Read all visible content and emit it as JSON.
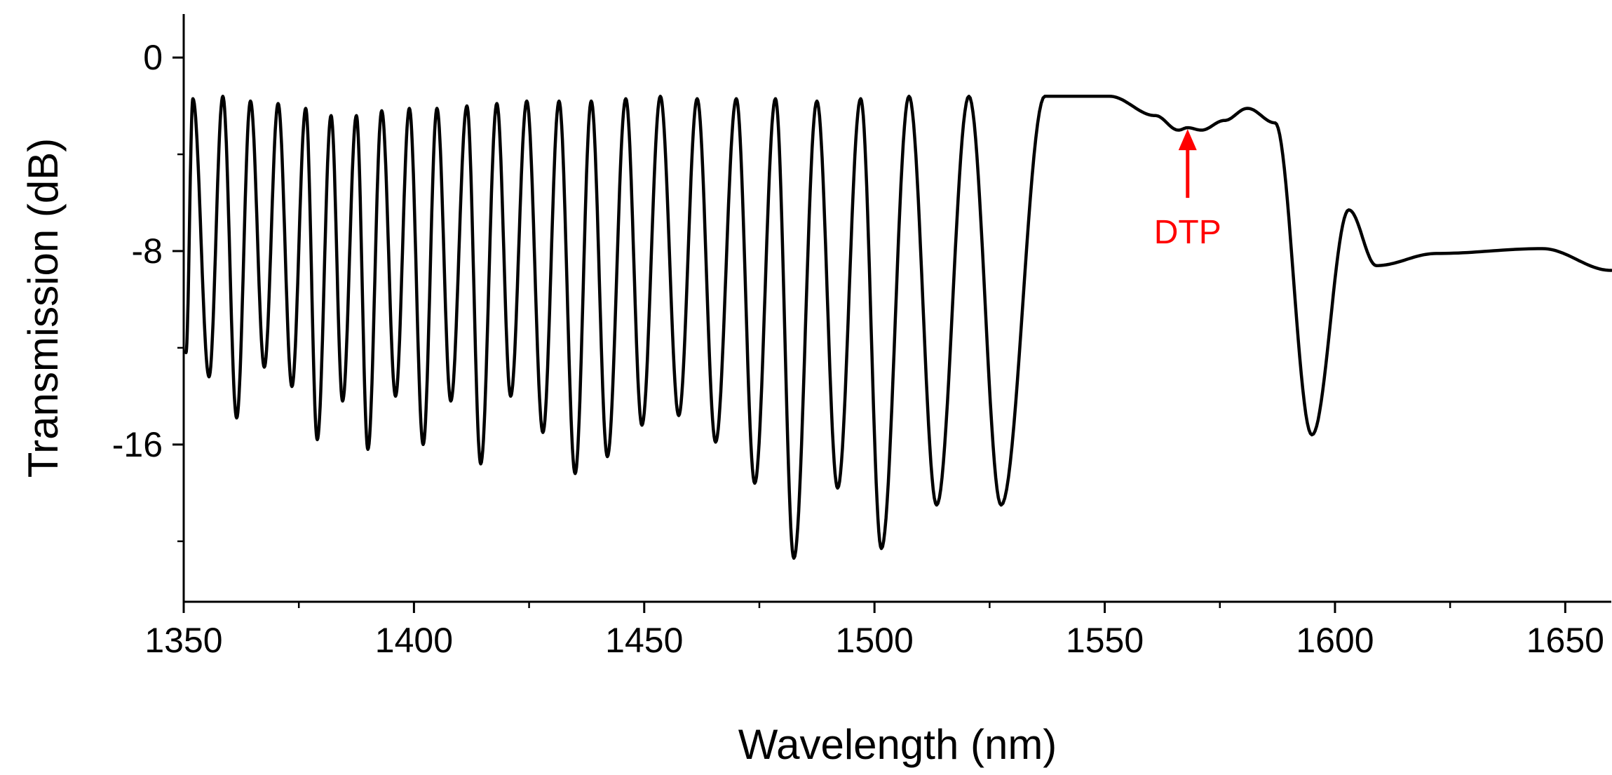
{
  "chart_data": {
    "type": "line",
    "xlabel": "Wavelength (nm)",
    "ylabel": "Transmission (dB)",
    "xlim": [
      1350,
      1660
    ],
    "ylim": [
      -22.5,
      1.8
    ],
    "x_major_ticks": [
      1350,
      1400,
      1450,
      1500,
      1550,
      1600,
      1650
    ],
    "x_tick_labels": [
      "1350",
      "1400",
      "1450",
      "1500",
      "1550",
      "1600",
      "1650"
    ],
    "x_minor_ticks": [
      1375,
      1425,
      1475,
      1525,
      1575,
      1625
    ],
    "y_major_ticks": [
      0,
      -8,
      -16
    ],
    "y_tick_labels": [
      "0",
      "-8",
      "-16"
    ],
    "y_minor_ticks": [
      -4,
      -12,
      -20
    ],
    "grid": false,
    "line_color": "#000000",
    "series": [
      {
        "name": "Transmission",
        "peaks": [
          {
            "x": 1352,
            "y": -1.7
          },
          {
            "x": 1358.5,
            "y": -1.6
          },
          {
            "x": 1364.5,
            "y": -1.8
          },
          {
            "x": 1370.5,
            "y": -1.9
          },
          {
            "x": 1376.5,
            "y": -2.1
          },
          {
            "x": 1382,
            "y": -2.4
          },
          {
            "x": 1387.5,
            "y": -2.4
          },
          {
            "x": 1393,
            "y": -2.2
          },
          {
            "x": 1399,
            "y": -2.1
          },
          {
            "x": 1405,
            "y": -2.1
          },
          {
            "x": 1411.5,
            "y": -2.0
          },
          {
            "x": 1418,
            "y": -1.9
          },
          {
            "x": 1424.5,
            "y": -1.8
          },
          {
            "x": 1431.5,
            "y": -1.8
          },
          {
            "x": 1438.5,
            "y": -1.8
          },
          {
            "x": 1446,
            "y": -1.7
          },
          {
            "x": 1453.5,
            "y": -1.6
          },
          {
            "x": 1461.5,
            "y": -1.7
          },
          {
            "x": 1470,
            "y": -1.7
          },
          {
            "x": 1478.5,
            "y": -1.7
          },
          {
            "x": 1487.5,
            "y": -1.8
          },
          {
            "x": 1497,
            "y": -1.7
          },
          {
            "x": 1507.5,
            "y": -1.6
          },
          {
            "x": 1520.5,
            "y": -1.6
          },
          {
            "x": 1537,
            "y": -1.6
          },
          {
            "x": 1551,
            "y": -1.6
          },
          {
            "x": 1561,
            "y": -2.4
          },
          {
            "x": 1566,
            "y": -3.0
          },
          {
            "x": 1568,
            "y": -2.9
          },
          {
            "x": 1571,
            "y": -3.0
          },
          {
            "x": 1576,
            "y": -2.6
          },
          {
            "x": 1581,
            "y": -2.1
          },
          {
            "x": 1587,
            "y": -2.7
          },
          {
            "x": 1603,
            "y": -6.3
          },
          {
            "x": 1609,
            "y": -8.6
          },
          {
            "x": 1622,
            "y": -8.1
          },
          {
            "x": 1645,
            "y": -7.9
          },
          {
            "x": 1660,
            "y": -8.8
          }
        ],
        "dips": [
          {
            "x": 1350.5,
            "y": -12.2
          },
          {
            "x": 1355.5,
            "y": -13.2
          },
          {
            "x": 1361.5,
            "y": -14.9
          },
          {
            "x": 1367.5,
            "y": -12.8
          },
          {
            "x": 1373.5,
            "y": -13.6
          },
          {
            "x": 1379,
            "y": -15.8
          },
          {
            "x": 1384.5,
            "y": -14.2
          },
          {
            "x": 1390,
            "y": -16.2
          },
          {
            "x": 1396,
            "y": -14.0
          },
          {
            "x": 1402,
            "y": -16.0
          },
          {
            "x": 1408,
            "y": -14.2
          },
          {
            "x": 1414.5,
            "y": -16.8
          },
          {
            "x": 1421,
            "y": -14.0
          },
          {
            "x": 1428,
            "y": -15.5
          },
          {
            "x": 1435,
            "y": -17.2
          },
          {
            "x": 1442,
            "y": -16.5
          },
          {
            "x": 1449.5,
            "y": -15.2
          },
          {
            "x": 1457.5,
            "y": -14.8
          },
          {
            "x": 1465.5,
            "y": -15.9
          },
          {
            "x": 1474,
            "y": -17.6
          },
          {
            "x": 1482.5,
            "y": -20.7
          },
          {
            "x": 1492,
            "y": -17.8
          },
          {
            "x": 1501.5,
            "y": -20.3
          },
          {
            "x": 1513.5,
            "y": -18.5
          },
          {
            "x": 1527.5,
            "y": -18.5
          },
          {
            "x": 1595,
            "y": -15.6
          }
        ]
      }
    ],
    "annotations": [
      {
        "text": "DTP",
        "x": 1568,
        "y": -2.9,
        "color": "#ff0000"
      }
    ]
  }
}
